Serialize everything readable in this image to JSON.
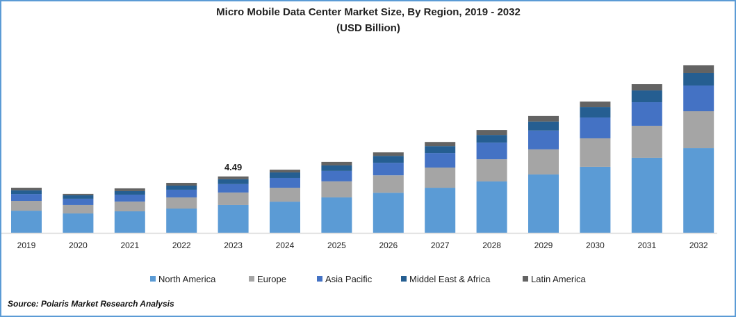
{
  "chart_data": {
    "type": "bar",
    "stacked": true,
    "title": "Micro Mobile Data Center Market Size, By Region, 2019 - 2032",
    "subtitle": "(USD Billion)",
    "xlabel": "",
    "ylabel": "",
    "ylim": [
      0,
      14
    ],
    "grid": false,
    "legend_position": "bottom",
    "categories": [
      "2019",
      "2020",
      "2021",
      "2022",
      "2023",
      "2024",
      "2025",
      "2026",
      "2027",
      "2028",
      "2029",
      "2030",
      "2031",
      "2032"
    ],
    "series": [
      {
        "name": "North America",
        "color": "#5b9bd5",
        "values": [
          1.77,
          1.55,
          1.72,
          1.94,
          2.22,
          2.49,
          2.83,
          3.2,
          3.6,
          4.1,
          4.66,
          5.27,
          5.99,
          6.76
        ]
      },
      {
        "name": "Europe",
        "color": "#a5a5a5",
        "values": [
          0.78,
          0.67,
          0.78,
          0.89,
          1.0,
          1.11,
          1.28,
          1.39,
          1.61,
          1.77,
          2.0,
          2.27,
          2.55,
          2.94
        ]
      },
      {
        "name": "Asia Pacific",
        "color": "#4472c4",
        "values": [
          0.55,
          0.5,
          0.55,
          0.61,
          0.67,
          0.78,
          0.83,
          1.0,
          1.16,
          1.33,
          1.5,
          1.66,
          1.88,
          2.05
        ]
      },
      {
        "name": "Middel East & Africa",
        "color": "#255e91",
        "values": [
          0.3,
          0.28,
          0.28,
          0.33,
          0.39,
          0.44,
          0.44,
          0.55,
          0.55,
          0.61,
          0.72,
          0.83,
          0.94,
          1.0
        ]
      },
      {
        "name": "Latin America",
        "color": "#636363",
        "values": [
          0.2,
          0.11,
          0.22,
          0.22,
          0.22,
          0.22,
          0.28,
          0.28,
          0.33,
          0.39,
          0.44,
          0.44,
          0.5,
          0.61
        ]
      }
    ],
    "annotations": [
      {
        "category": "2023",
        "label": "4.49"
      }
    ]
  },
  "source": "Source: Polaris  Market Research Analysis"
}
